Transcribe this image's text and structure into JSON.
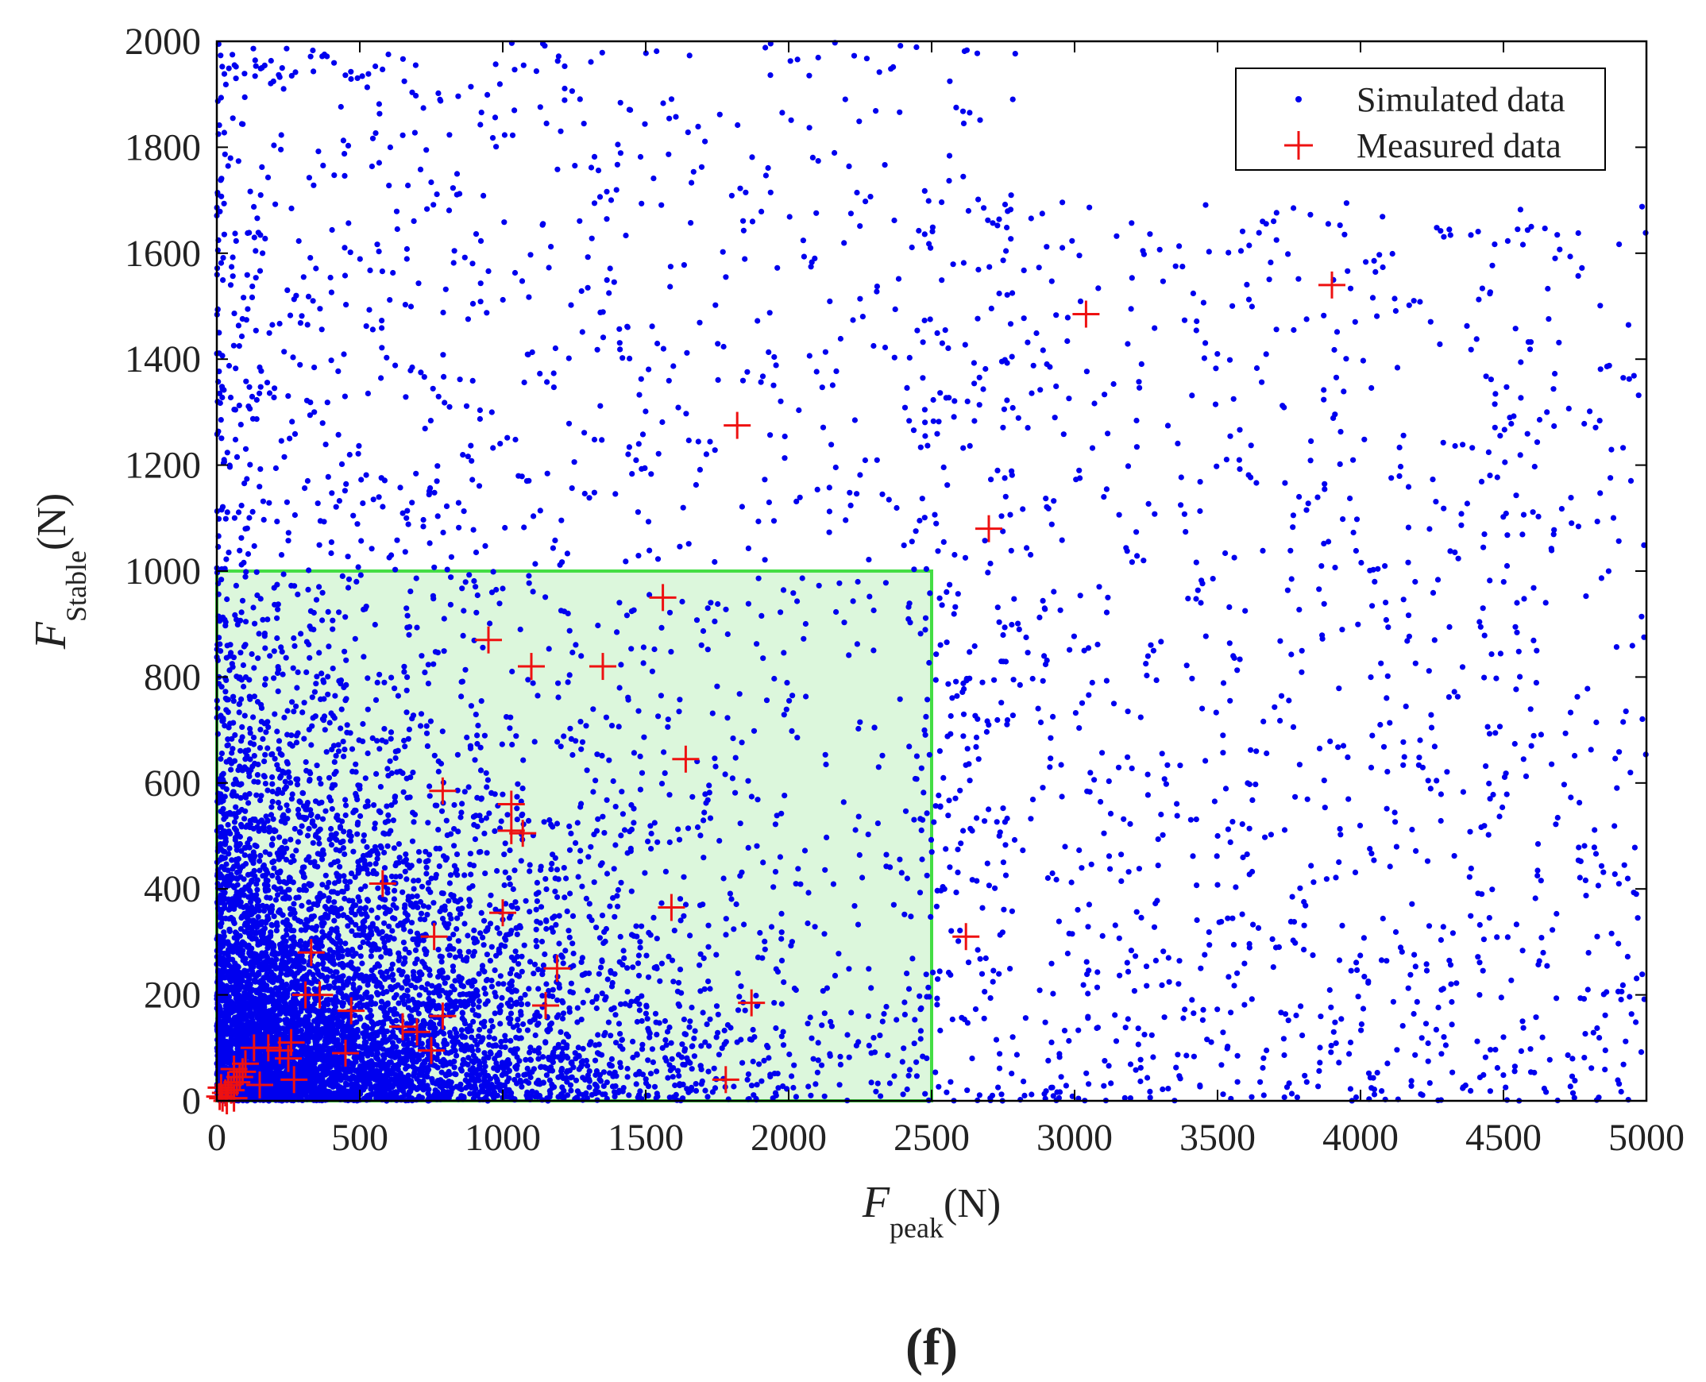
{
  "chart_data": {
    "type": "scatter",
    "panel_label": "(f)",
    "xlabel": {
      "main": "F",
      "sub": "peak",
      "unit": "(N)"
    },
    "ylabel": {
      "main": "F",
      "sub": "Stable",
      "unit": "(N)"
    },
    "xlim": [
      0,
      5000
    ],
    "ylim": [
      0,
      2000
    ],
    "xticks": [
      0,
      500,
      1000,
      1500,
      2000,
      2500,
      3000,
      3500,
      4000,
      4500,
      5000
    ],
    "yticks": [
      0,
      200,
      400,
      600,
      800,
      1000,
      1200,
      1400,
      1600,
      1800,
      2000
    ],
    "legend_position": "top-right",
    "grid": false,
    "highlight_region": {
      "x": [
        0,
        2500
      ],
      "y": [
        0,
        1000
      ],
      "stroke": "#44dd44",
      "fill": "#dcf7dc"
    },
    "series": [
      {
        "name": "Simulated data",
        "marker": "dot",
        "color": "#0000ee",
        "points_count_estimate": 9000
      },
      {
        "name": "Measured data",
        "marker": "plus",
        "color": "#ee1111",
        "points": [
          [
            3900,
            1540
          ],
          [
            3040,
            1485
          ],
          [
            1820,
            1275
          ],
          [
            2700,
            1080
          ],
          [
            1560,
            950
          ],
          [
            950,
            870
          ],
          [
            1100,
            820
          ],
          [
            1350,
            820
          ],
          [
            1640,
            645
          ],
          [
            790,
            585
          ],
          [
            1030,
            560
          ],
          [
            1030,
            510
          ],
          [
            1070,
            505
          ],
          [
            580,
            410
          ],
          [
            1000,
            355
          ],
          [
            1590,
            365
          ],
          [
            2620,
            310
          ],
          [
            760,
            310
          ],
          [
            1190,
            250
          ],
          [
            330,
            280
          ],
          [
            310,
            200
          ],
          [
            360,
            200
          ],
          [
            470,
            170
          ],
          [
            790,
            160
          ],
          [
            1150,
            180
          ],
          [
            1870,
            185
          ],
          [
            650,
            140
          ],
          [
            700,
            130
          ],
          [
            450,
            90
          ],
          [
            750,
            95
          ],
          [
            130,
            100
          ],
          [
            180,
            100
          ],
          [
            220,
            95
          ],
          [
            260,
            110
          ],
          [
            250,
            80
          ],
          [
            270,
            40
          ],
          [
            150,
            30
          ],
          [
            1780,
            40
          ],
          [
            60,
            60
          ],
          [
            80,
            45
          ],
          [
            40,
            30
          ],
          [
            30,
            15
          ],
          [
            20,
            5
          ],
          [
            10,
            8
          ],
          [
            50,
            20
          ],
          [
            90,
            55
          ],
          [
            70,
            35
          ],
          [
            35,
            0
          ],
          [
            60,
            5
          ],
          [
            100,
            70
          ],
          [
            15,
            25
          ]
        ]
      }
    ]
  }
}
